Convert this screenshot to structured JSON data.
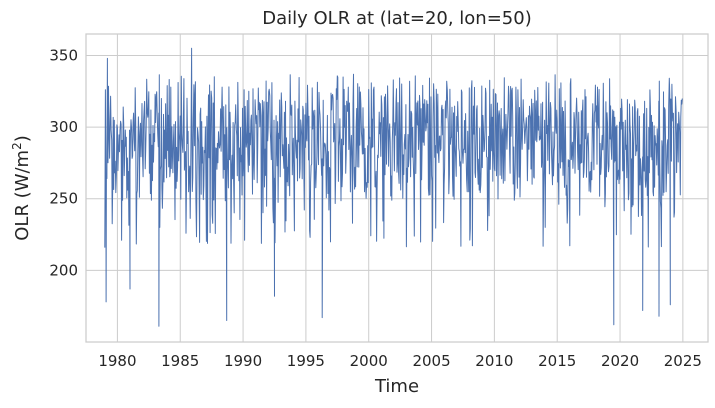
{
  "chart_data": {
    "type": "line",
    "title": "Daily OLR at (lat=20, lon=50)",
    "xlabel": "Time",
    "ylabel_main": "OLR (W/m",
    "ylabel_sup": "2",
    "ylabel_close": ")",
    "xlim": [
      1977.5,
      2027.0
    ],
    "ylim": [
      150,
      365
    ],
    "x_ticks": [
      1980,
      1985,
      1990,
      1995,
      2000,
      2005,
      2010,
      2015,
      2020,
      2025
    ],
    "x_tick_labels": [
      "1980",
      "1985",
      "1990",
      "1995",
      "2000",
      "2005",
      "2010",
      "2015",
      "2020",
      "2025"
    ],
    "y_ticks": [
      200,
      250,
      300,
      350
    ],
    "y_tick_labels": [
      "200",
      "250",
      "300",
      "350"
    ],
    "grid": true,
    "series": [
      {
        "color": "#4c72b0",
        "x_start": 1979.0,
        "x_end": 2025.0,
        "baseline": 290,
        "typical_high": 325,
        "typical_low": 255,
        "extremes": [
          {
            "x": 1979.1,
            "y": 178
          },
          {
            "x": 1979.2,
            "y": 348
          },
          {
            "x": 1981.0,
            "y": 187
          },
          {
            "x": 1983.3,
            "y": 161
          },
          {
            "x": 1985.9,
            "y": 355
          },
          {
            "x": 1988.7,
            "y": 165
          },
          {
            "x": 1992.5,
            "y": 182
          },
          {
            "x": 1996.3,
            "y": 167
          },
          {
            "x": 2019.5,
            "y": 162
          },
          {
            "x": 2021.8,
            "y": 172
          },
          {
            "x": 2023.1,
            "y": 168
          },
          {
            "x": 2024.0,
            "y": 176
          }
        ]
      }
    ]
  }
}
